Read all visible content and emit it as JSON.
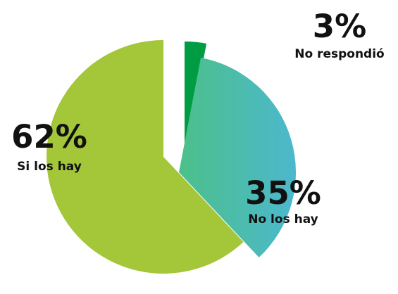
{
  "chart_data": {
    "type": "pie",
    "exploded": true,
    "slices": [
      {
        "label": "Si los hay",
        "value": 62,
        "value_label": "62%",
        "color": "#a4c639"
      },
      {
        "label": "No respondió",
        "value": 3,
        "value_label": "3%",
        "color": "#009c44"
      },
      {
        "label": "No los hay",
        "value": 35,
        "value_label": "35%",
        "color_start": "#4cc08a",
        "color_end": "#4cb8cd"
      }
    ]
  }
}
